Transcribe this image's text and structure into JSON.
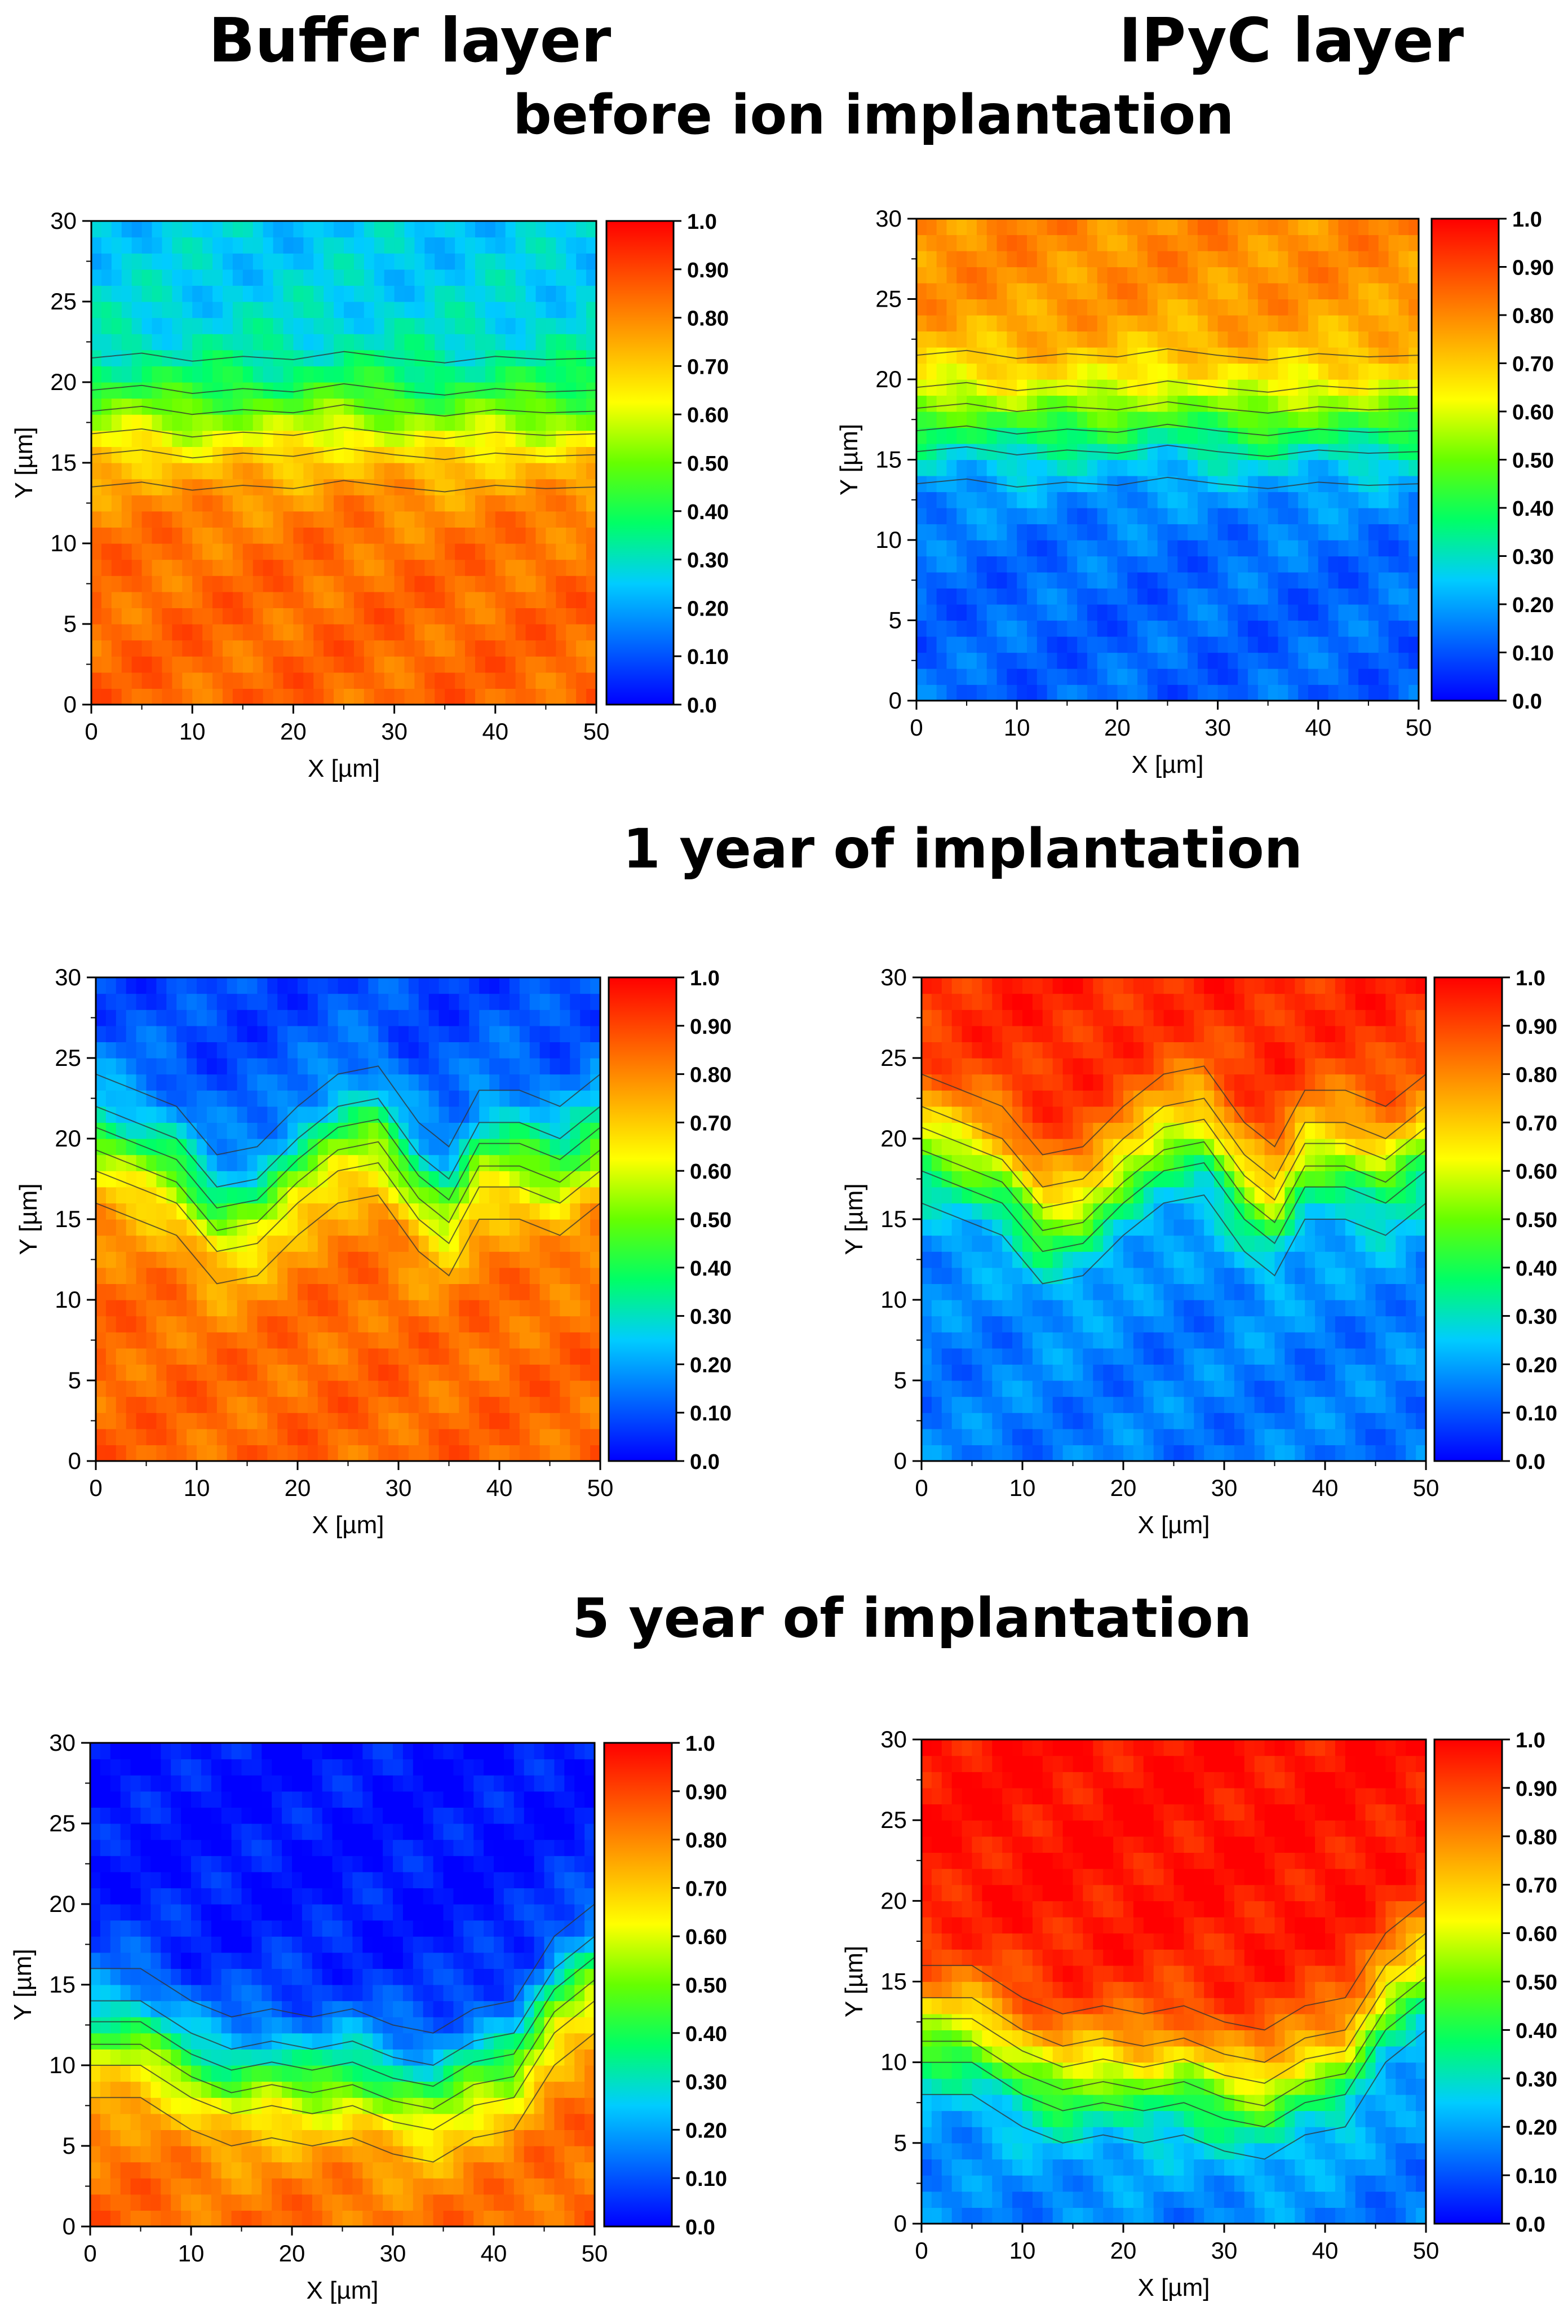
{
  "headers": {
    "col_left": "Buffer layer",
    "col_right": "IPyC layer",
    "row1": "before ion implantation",
    "row2": "1 year of implantation",
    "row3": "5 year of implantation"
  },
  "colormap": {
    "stops": [
      "#0000ff",
      "#0066ff",
      "#00ccff",
      "#00ff66",
      "#66ff00",
      "#ffff00",
      "#ffaa00",
      "#ff5500",
      "#ff0000"
    ],
    "contour_color": "#333333"
  },
  "chart_data": [
    {
      "id": "before-buffer",
      "type": "heatmap",
      "row": "before ion implantation",
      "column": "Buffer layer",
      "xlabel": "X [µm]",
      "ylabel": "Y [µm]",
      "xlim": [
        0,
        50
      ],
      "ylim": [
        0,
        30
      ],
      "xticks": [
        "0",
        "10",
        "20",
        "30",
        "40",
        "50"
      ],
      "yticks": [
        "0",
        "5",
        "10",
        "15",
        "20",
        "25",
        "30"
      ],
      "colorbar": {
        "min": 0.0,
        "max": 1.0,
        "ticks": [
          "0.0",
          "0.10",
          "0.20",
          "0.30",
          "0.40",
          "0.50",
          "0.60",
          "0.70",
          "0.80",
          "0.90",
          "1.0"
        ]
      },
      "boundary": [
        [
          0,
          17.5
        ],
        [
          5,
          17.8
        ],
        [
          10,
          17.3
        ],
        [
          15,
          17.6
        ],
        [
          20,
          17.4
        ],
        [
          25,
          17.9
        ],
        [
          30,
          17.5
        ],
        [
          35,
          17.2
        ],
        [
          40,
          17.6
        ],
        [
          45,
          17.4
        ],
        [
          50,
          17.5
        ]
      ],
      "dips": [],
      "values_below": 0.85,
      "values_above": 0.25,
      "invert": false
    },
    {
      "id": "before-ipyc",
      "type": "heatmap",
      "row": "before ion implantation",
      "column": "IPyC layer",
      "xlabel": "X [µm]",
      "ylabel": "Y [µm]",
      "xlim": [
        0,
        50
      ],
      "ylim": [
        0,
        30
      ],
      "xticks": [
        "0",
        "10",
        "20",
        "30",
        "40",
        "50"
      ],
      "yticks": [
        "0",
        "5",
        "10",
        "15",
        "20",
        "25",
        "30"
      ],
      "colorbar": {
        "min": 0.0,
        "max": 1.0,
        "ticks": [
          "0.0",
          "0.10",
          "0.20",
          "0.30",
          "0.40",
          "0.50",
          "0.60",
          "0.70",
          "0.80",
          "0.90",
          "1.0"
        ]
      },
      "boundary": [
        [
          0,
          17.5
        ],
        [
          5,
          17.8
        ],
        [
          10,
          17.3
        ],
        [
          15,
          17.6
        ],
        [
          20,
          17.4
        ],
        [
          25,
          17.9
        ],
        [
          30,
          17.5
        ],
        [
          35,
          17.2
        ],
        [
          40,
          17.6
        ],
        [
          45,
          17.4
        ],
        [
          50,
          17.5
        ]
      ],
      "dips": [],
      "values_below": 0.12,
      "values_above": 0.8,
      "invert": true
    },
    {
      "id": "one-year-buffer",
      "type": "heatmap",
      "row": "1 year of implantation",
      "column": "Buffer layer",
      "xlabel": "X [µm]",
      "ylabel": "Y [µm]",
      "xlim": [
        0,
        50
      ],
      "ylim": [
        0,
        30
      ],
      "xticks": [
        "0",
        "10",
        "20",
        "30",
        "40",
        "50"
      ],
      "yticks": [
        "0",
        "5",
        "10",
        "15",
        "20",
        "25",
        "30"
      ],
      "colorbar": {
        "min": 0.0,
        "max": 1.0,
        "ticks": [
          "0.0",
          "0.10",
          "0.20",
          "0.30",
          "0.40",
          "0.50",
          "0.60",
          "0.70",
          "0.80",
          "0.90",
          "1.0"
        ]
      },
      "boundary": [
        [
          0,
          20
        ],
        [
          4,
          19
        ],
        [
          8,
          18
        ],
        [
          12,
          15
        ],
        [
          16,
          15.5
        ],
        [
          20,
          18
        ],
        [
          24,
          20
        ],
        [
          28,
          20.5
        ],
        [
          32,
          17
        ],
        [
          35,
          15.5
        ],
        [
          38,
          19
        ],
        [
          42,
          19
        ],
        [
          46,
          18
        ],
        [
          50,
          20
        ]
      ],
      "dips": [],
      "values_below": 0.85,
      "values_above": 0.08,
      "invert": false
    },
    {
      "id": "one-year-ipyc",
      "type": "heatmap",
      "row": "1 year of implantation",
      "column": "IPyC layer",
      "xlabel": "X [µm]",
      "ylabel": "Y [µm]",
      "xlim": [
        0,
        50
      ],
      "ylim": [
        0,
        30
      ],
      "xticks": [
        "0",
        "10",
        "20",
        "30",
        "40",
        "50"
      ],
      "yticks": [
        "0",
        "5",
        "10",
        "15",
        "20",
        "25",
        "30"
      ],
      "colorbar": {
        "min": 0.0,
        "max": 1.0,
        "ticks": [
          "0.0",
          "0.10",
          "0.20",
          "0.30",
          "0.40",
          "0.50",
          "0.60",
          "0.70",
          "0.80",
          "0.90",
          "1.0"
        ]
      },
      "boundary": [
        [
          0,
          20
        ],
        [
          4,
          19
        ],
        [
          8,
          18
        ],
        [
          12,
          15
        ],
        [
          16,
          15.5
        ],
        [
          20,
          18
        ],
        [
          24,
          20
        ],
        [
          28,
          20.5
        ],
        [
          32,
          17
        ],
        [
          35,
          15.5
        ],
        [
          38,
          19
        ],
        [
          42,
          19
        ],
        [
          46,
          18
        ],
        [
          50,
          20
        ]
      ],
      "dips": [],
      "values_below": 0.15,
      "values_above": 0.95,
      "invert": true
    },
    {
      "id": "five-year-buffer",
      "type": "heatmap",
      "row": "5 year of implantation",
      "column": "Buffer layer",
      "xlabel": "X [µm]",
      "ylabel": "Y [µm]",
      "xlim": [
        0,
        50
      ],
      "ylim": [
        0,
        30
      ],
      "xticks": [
        "0",
        "10",
        "20",
        "30",
        "40",
        "50"
      ],
      "yticks": [
        "0",
        "5",
        "10",
        "15",
        "20",
        "25",
        "30"
      ],
      "colorbar": {
        "min": 0.0,
        "max": 1.0,
        "ticks": [
          "0.0",
          "0.10",
          "0.20",
          "0.30",
          "0.40",
          "0.50",
          "0.60",
          "0.70",
          "0.80",
          "0.90",
          "1.0"
        ]
      },
      "boundary": [
        [
          0,
          12
        ],
        [
          5,
          12
        ],
        [
          10,
          10
        ],
        [
          14,
          9
        ],
        [
          18,
          9.5
        ],
        [
          22,
          9
        ],
        [
          26,
          9.5
        ],
        [
          30,
          8.5
        ],
        [
          34,
          8
        ],
        [
          38,
          9.5
        ],
        [
          42,
          10
        ],
        [
          46,
          14
        ],
        [
          50,
          16
        ]
      ],
      "dips": [],
      "values_below": 0.85,
      "values_above": 0.02,
      "invert": false
    },
    {
      "id": "five-year-ipyc",
      "type": "heatmap",
      "row": "5 year of implantation",
      "column": "IPyC layer",
      "xlabel": "X [µm]",
      "ylabel": "Y [µm]",
      "xlim": [
        0,
        50
      ],
      "ylim": [
        0,
        30
      ],
      "xticks": [
        "0",
        "10",
        "20",
        "30",
        "40",
        "50"
      ],
      "yticks": [
        "0",
        "5",
        "10",
        "15",
        "20",
        "25",
        "30"
      ],
      "colorbar": {
        "min": 0.0,
        "max": 1.0,
        "ticks": [
          "0.0",
          "0.10",
          "0.20",
          "0.30",
          "0.40",
          "0.50",
          "0.60",
          "0.70",
          "0.80",
          "0.90",
          "1.0"
        ]
      },
      "boundary": [
        [
          0,
          12
        ],
        [
          5,
          12
        ],
        [
          10,
          10
        ],
        [
          14,
          9
        ],
        [
          18,
          9.5
        ],
        [
          22,
          9
        ],
        [
          26,
          9.5
        ],
        [
          30,
          8.5
        ],
        [
          34,
          8
        ],
        [
          38,
          9.5
        ],
        [
          42,
          10
        ],
        [
          46,
          14
        ],
        [
          50,
          16
        ]
      ],
      "dips": [],
      "values_below": 0.15,
      "values_above": 0.98,
      "invert": true
    }
  ]
}
